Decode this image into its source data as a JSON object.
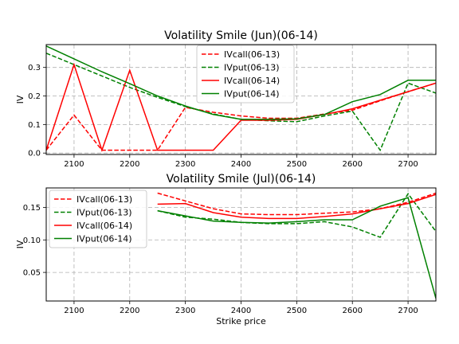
{
  "chart_data": [
    {
      "type": "line",
      "title": "Volatility Smile (Jun)(06-14)",
      "xlabel": "",
      "ylabel": "IV",
      "xlim": [
        2050,
        2750
      ],
      "ylim": [
        -0.005,
        0.38
      ],
      "xticks": [
        2100,
        2200,
        2300,
        2400,
        2500,
        2600,
        2700
      ],
      "yticks": [
        0.0,
        0.1,
        0.2,
        0.3
      ],
      "ytick_labels": [
        "0.0",
        "0.1",
        "0.2",
        "0.3"
      ],
      "grid": true,
      "legend": "top-center",
      "series": [
        {
          "name": "IVcall(06-13)",
          "color": "#ff0000",
          "dashed": true,
          "points": [
            [
              2050,
              0.01
            ],
            [
              2100,
              0.133
            ],
            [
              2150,
              0.01
            ],
            [
              2200,
              0.01
            ],
            [
              2250,
              0.01
            ],
            [
              2300,
              0.16
            ],
            [
              2350,
              0.143
            ],
            [
              2400,
              0.13
            ],
            [
              2450,
              0.122
            ],
            [
              2500,
              0.122
            ],
            [
              2550,
              0.137
            ],
            [
              2600,
              0.15
            ],
            [
              2650,
              0.183
            ],
            [
              2700,
              0.215
            ],
            [
              2750,
              0.245
            ]
          ]
        },
        {
          "name": "IVput(06-13)",
          "color": "#008000",
          "dashed": true,
          "points": [
            [
              2050,
              0.35
            ],
            [
              2100,
              0.31
            ],
            [
              2150,
              0.27
            ],
            [
              2200,
              0.23
            ],
            [
              2250,
              0.195
            ],
            [
              2300,
              0.163
            ],
            [
              2350,
              0.137
            ],
            [
              2400,
              0.118
            ],
            [
              2450,
              0.113
            ],
            [
              2500,
              0.11
            ],
            [
              2550,
              0.13
            ],
            [
              2600,
              0.147
            ],
            [
              2650,
              0.01
            ],
            [
              2700,
              0.245
            ],
            [
              2750,
              0.21
            ]
          ]
        },
        {
          "name": "IVcall(06-14)",
          "color": "#ff0000",
          "dashed": false,
          "points": [
            [
              2050,
              0.01
            ],
            [
              2100,
              0.31
            ],
            [
              2150,
              0.01
            ],
            [
              2200,
              0.29
            ],
            [
              2250,
              0.01
            ],
            [
              2300,
              0.01
            ],
            [
              2350,
              0.01
            ],
            [
              2400,
              0.115
            ],
            [
              2450,
              0.115
            ],
            [
              2500,
              0.118
            ],
            [
              2550,
              0.135
            ],
            [
              2600,
              0.155
            ],
            [
              2650,
              0.185
            ],
            [
              2700,
              0.215
            ],
            [
              2750,
              0.245
            ]
          ]
        },
        {
          "name": "IVput(06-14)",
          "color": "#008000",
          "dashed": false,
          "points": [
            [
              2050,
              0.375
            ],
            [
              2100,
              0.33
            ],
            [
              2150,
              0.285
            ],
            [
              2200,
              0.243
            ],
            [
              2250,
              0.2
            ],
            [
              2300,
              0.165
            ],
            [
              2350,
              0.135
            ],
            [
              2400,
              0.118
            ],
            [
              2450,
              0.118
            ],
            [
              2500,
              0.12
            ],
            [
              2550,
              0.135
            ],
            [
              2600,
              0.18
            ],
            [
              2650,
              0.205
            ],
            [
              2700,
              0.255
            ],
            [
              2750,
              0.255
            ]
          ]
        }
      ]
    },
    {
      "type": "line",
      "title": "Volatility Smile (Jul)(06-14)",
      "xlabel": "Strike price",
      "ylabel": "IV",
      "xlim": [
        2050,
        2750
      ],
      "ylim": [
        0.006,
        0.18
      ],
      "xticks": [
        2100,
        2200,
        2300,
        2400,
        2500,
        2600,
        2700
      ],
      "yticks": [
        0.05,
        0.1,
        0.15
      ],
      "ytick_labels": [
        "0.05",
        "0.10",
        "0.15"
      ],
      "grid": true,
      "legend": "top-left",
      "series": [
        {
          "name": "IVcall(06-13)",
          "color": "#ff0000",
          "dashed": true,
          "points": [
            [
              2250,
              0.172
            ],
            [
              2300,
              0.16
            ],
            [
              2350,
              0.148
            ],
            [
              2400,
              0.14
            ],
            [
              2450,
              0.139
            ],
            [
              2500,
              0.139
            ],
            [
              2550,
              0.141
            ],
            [
              2600,
              0.143
            ],
            [
              2650,
              0.148
            ],
            [
              2700,
              0.158
            ],
            [
              2750,
              0.172
            ]
          ]
        },
        {
          "name": "IVput(06-13)",
          "color": "#008000",
          "dashed": true,
          "points": [
            [
              2250,
              0.145
            ],
            [
              2300,
              0.135
            ],
            [
              2350,
              0.132
            ],
            [
              2400,
              0.127
            ],
            [
              2450,
              0.125
            ],
            [
              2500,
              0.125
            ],
            [
              2550,
              0.128
            ],
            [
              2600,
              0.12
            ],
            [
              2650,
              0.104
            ],
            [
              2700,
              0.171
            ],
            [
              2750,
              0.113
            ]
          ]
        },
        {
          "name": "IVcall(06-14)",
          "color": "#ff0000",
          "dashed": false,
          "points": [
            [
              2250,
              0.155
            ],
            [
              2300,
              0.156
            ],
            [
              2350,
              0.142
            ],
            [
              2400,
              0.135
            ],
            [
              2450,
              0.133
            ],
            [
              2500,
              0.133
            ],
            [
              2550,
              0.136
            ],
            [
              2600,
              0.14
            ],
            [
              2650,
              0.148
            ],
            [
              2700,
              0.156
            ],
            [
              2750,
              0.17
            ]
          ]
        },
        {
          "name": "IVput(06-14)",
          "color": "#008000",
          "dashed": false,
          "points": [
            [
              2250,
              0.145
            ],
            [
              2300,
              0.137
            ],
            [
              2350,
              0.129
            ],
            [
              2400,
              0.127
            ],
            [
              2450,
              0.126
            ],
            [
              2500,
              0.128
            ],
            [
              2550,
              0.131
            ],
            [
              2600,
              0.131
            ],
            [
              2650,
              0.152
            ],
            [
              2700,
              0.165
            ],
            [
              2750,
              0.01
            ]
          ]
        }
      ]
    }
  ]
}
